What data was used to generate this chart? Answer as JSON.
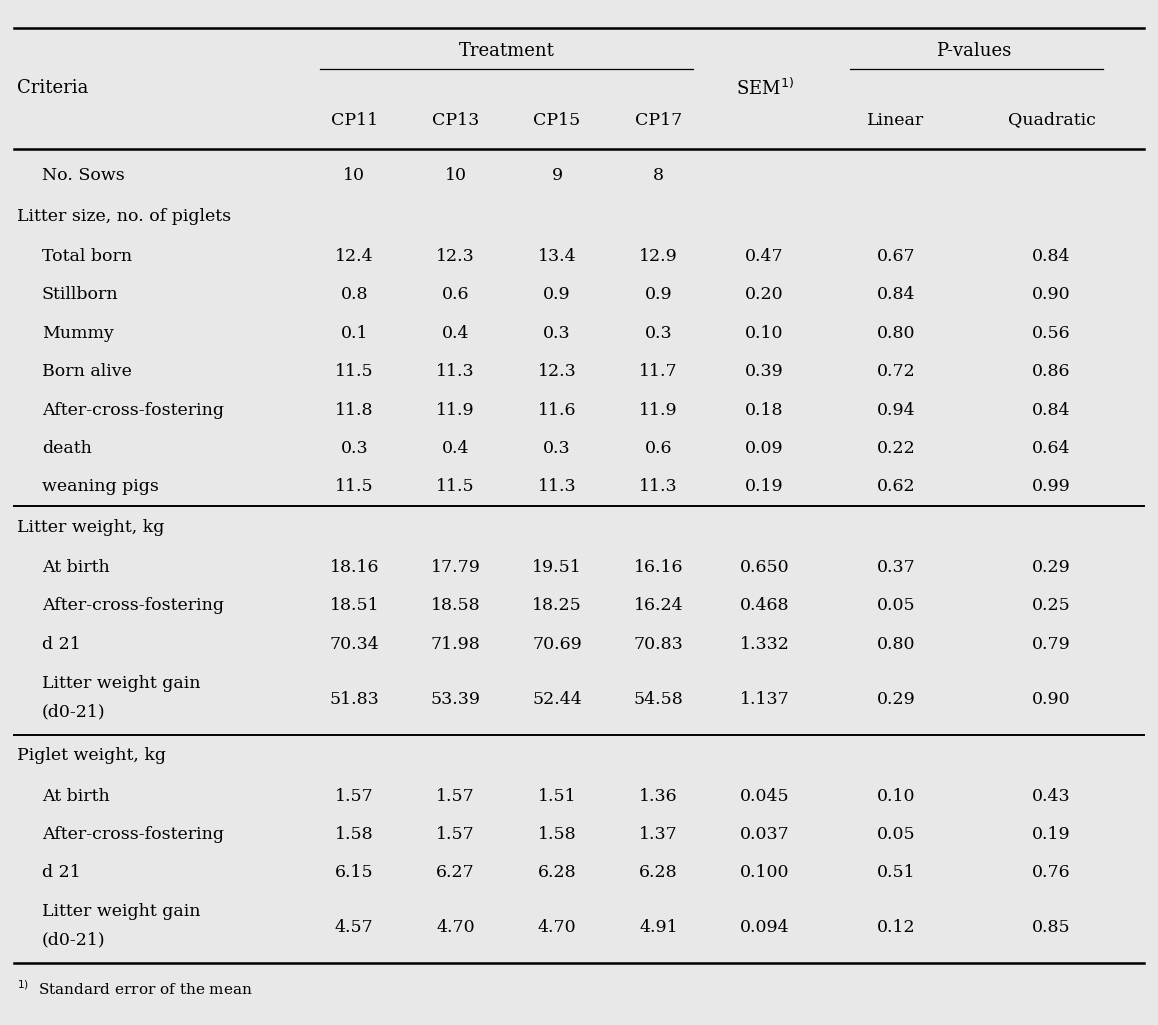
{
  "treatment_label": "Treatment",
  "pvalues_label": "P-values",
  "sem_label": "SEM",
  "footnote": "Standard error of the mean",
  "rows": [
    {
      "label": "No. Sows",
      "indent": 0,
      "is_section": false,
      "two_line": false,
      "values": [
        "10",
        "10",
        "9",
        "8",
        "",
        "",
        ""
      ]
    },
    {
      "label": "Litter size, no. of piglets",
      "indent": 0,
      "is_section": true,
      "two_line": false,
      "values": [
        "",
        "",
        "",
        "",
        "",
        "",
        ""
      ]
    },
    {
      "label": "Total born",
      "indent": 1,
      "is_section": false,
      "two_line": false,
      "values": [
        "12.4",
        "12.3",
        "13.4",
        "12.9",
        "0.47",
        "0.67",
        "0.84"
      ]
    },
    {
      "label": "Stillborn",
      "indent": 1,
      "is_section": false,
      "two_line": false,
      "values": [
        "0.8",
        "0.6",
        "0.9",
        "0.9",
        "0.20",
        "0.84",
        "0.90"
      ]
    },
    {
      "label": "Mummy",
      "indent": 1,
      "is_section": false,
      "two_line": false,
      "values": [
        "0.1",
        "0.4",
        "0.3",
        "0.3",
        "0.10",
        "0.80",
        "0.56"
      ]
    },
    {
      "label": "Born alive",
      "indent": 1,
      "is_section": false,
      "two_line": false,
      "values": [
        "11.5",
        "11.3",
        "12.3",
        "11.7",
        "0.39",
        "0.72",
        "0.86"
      ]
    },
    {
      "label": "After-cross-fostering",
      "indent": 1,
      "is_section": false,
      "two_line": false,
      "values": [
        "11.8",
        "11.9",
        "11.6",
        "11.9",
        "0.18",
        "0.94",
        "0.84"
      ]
    },
    {
      "label": "death",
      "indent": 1,
      "is_section": false,
      "two_line": false,
      "values": [
        "0.3",
        "0.4",
        "0.3",
        "0.6",
        "0.09",
        "0.22",
        "0.64"
      ]
    },
    {
      "label": "weaning pigs",
      "indent": 1,
      "is_section": false,
      "two_line": false,
      "values": [
        "11.5",
        "11.5",
        "11.3",
        "11.3",
        "0.19",
        "0.62",
        "0.99"
      ]
    },
    {
      "label": "Litter weight, kg",
      "indent": 0,
      "is_section": true,
      "two_line": false,
      "values": [
        "",
        "",
        "",
        "",
        "",
        "",
        ""
      ]
    },
    {
      "label": "At birth",
      "indent": 1,
      "is_section": false,
      "two_line": false,
      "values": [
        "18.16",
        "17.79",
        "19.51",
        "16.16",
        "0.650",
        "0.37",
        "0.29"
      ]
    },
    {
      "label": "After-cross-fostering",
      "indent": 1,
      "is_section": false,
      "two_line": false,
      "values": [
        "18.51",
        "18.58",
        "18.25",
        "16.24",
        "0.468",
        "0.05",
        "0.25"
      ]
    },
    {
      "label": "d 21",
      "indent": 1,
      "is_section": false,
      "two_line": false,
      "values": [
        "70.34",
        "71.98",
        "70.69",
        "70.83",
        "1.332",
        "0.80",
        "0.79"
      ]
    },
    {
      "label": "Litter weight gain|(d0-21)",
      "indent": 1,
      "is_section": false,
      "two_line": true,
      "values": [
        "51.83",
        "53.39",
        "52.44",
        "54.58",
        "1.137",
        "0.29",
        "0.90"
      ]
    },
    {
      "label": "Piglet weight, kg",
      "indent": 0,
      "is_section": true,
      "two_line": false,
      "values": [
        "",
        "",
        "",
        "",
        "",
        "",
        ""
      ]
    },
    {
      "label": "At birth",
      "indent": 1,
      "is_section": false,
      "two_line": false,
      "values": [
        "1.57",
        "1.57",
        "1.51",
        "1.36",
        "0.045",
        "0.10",
        "0.43"
      ]
    },
    {
      "label": "After-cross-fostering",
      "indent": 1,
      "is_section": false,
      "two_line": false,
      "values": [
        "1.58",
        "1.57",
        "1.58",
        "1.37",
        "0.037",
        "0.05",
        "0.19"
      ]
    },
    {
      "label": "d 21",
      "indent": 1,
      "is_section": false,
      "two_line": false,
      "values": [
        "6.15",
        "6.27",
        "6.28",
        "6.28",
        "0.100",
        "0.51",
        "0.76"
      ]
    },
    {
      "label": "Litter weight gain|(d0-21)",
      "indent": 1,
      "is_section": false,
      "two_line": true,
      "values": [
        "4.57",
        "4.70",
        "4.70",
        "4.91",
        "0.094",
        "0.12",
        "0.85"
      ]
    }
  ],
  "bg_color": "#e8e8e8",
  "text_color": "#000000",
  "font_size": 12.5,
  "section_line_indices": [
    9,
    14
  ]
}
